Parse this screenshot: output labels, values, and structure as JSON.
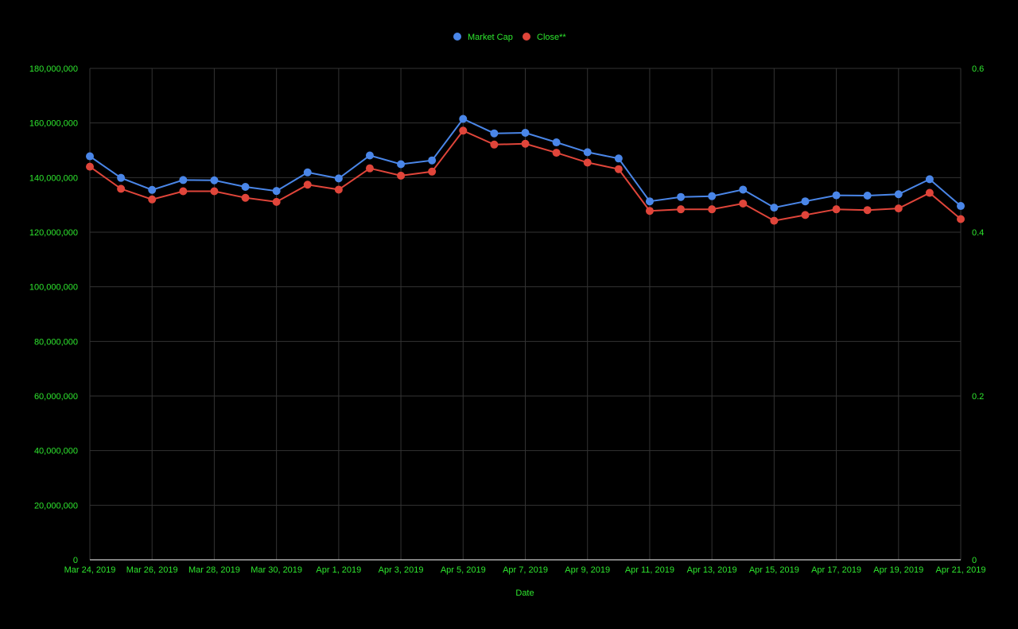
{
  "chart_data": {
    "type": "line",
    "xlabel": "Date",
    "x": [
      "Mar 24, 2019",
      "Mar 25, 2019",
      "Mar 26, 2019",
      "Mar 27, 2019",
      "Mar 28, 2019",
      "Mar 29, 2019",
      "Mar 30, 2019",
      "Mar 31, 2019",
      "Apr 1, 2019",
      "Apr 2, 2019",
      "Apr 3, 2019",
      "Apr 4, 2019",
      "Apr 5, 2019",
      "Apr 6, 2019",
      "Apr 7, 2019",
      "Apr 8, 2019",
      "Apr 9, 2019",
      "Apr 10, 2019",
      "Apr 11, 2019",
      "Apr 12, 2019",
      "Apr 13, 2019",
      "Apr 14, 2019",
      "Apr 15, 2019",
      "Apr 16, 2019",
      "Apr 17, 2019",
      "Apr 18, 2019",
      "Apr 19, 2019",
      "Apr 20, 2019",
      "Apr 21, 2019"
    ],
    "x_tick_labels": [
      "Mar 24, 2019",
      "Mar 26, 2019",
      "Mar 28, 2019",
      "Mar 30, 2019",
      "Apr 1, 2019",
      "Apr 3, 2019",
      "Apr 5, 2019",
      "Apr 7, 2019",
      "Apr 9, 2019",
      "Apr 11, 2019",
      "Apr 13, 2019",
      "Apr 15, 2019",
      "Apr 17, 2019",
      "Apr 19, 2019",
      "Apr 21, 2019"
    ],
    "y_left": {
      "range": [
        0,
        180000000
      ],
      "tick_labels": [
        "0",
        "20,000,000",
        "40,000,000",
        "60,000,000",
        "80,000,000",
        "100,000,000",
        "120,000,000",
        "140,000,000",
        "160,000,000",
        "180,000,000"
      ]
    },
    "y_right": {
      "range": [
        0,
        0.6
      ],
      "tick_labels": [
        "0",
        "0.2",
        "0.4",
        "0.6"
      ]
    },
    "series": [
      {
        "name": "Market Cap",
        "axis": "left",
        "color": "#4a86e8",
        "values": [
          147800000,
          139900000,
          135500000,
          139100000,
          139000000,
          136600000,
          135100000,
          141900000,
          139700000,
          148100000,
          144900000,
          146300000,
          161500000,
          156200000,
          156400000,
          152900000,
          149300000,
          147000000,
          131300000,
          132900000,
          133200000,
          135600000,
          129000000,
          131300000,
          133500000,
          133400000,
          133900000,
          139400000,
          129600000
        ]
      },
      {
        "name": "Close**",
        "axis": "right",
        "color": "#e0453a",
        "values": [
          0.48,
          0.453,
          0.44,
          0.45,
          0.45,
          0.442,
          0.437,
          0.458,
          0.452,
          0.478,
          0.469,
          0.474,
          0.524,
          0.507,
          0.508,
          0.497,
          0.485,
          0.477,
          0.426,
          0.428,
          0.428,
          0.435,
          0.414,
          0.421,
          0.428,
          0.427,
          0.429,
          0.448,
          0.416
        ]
      }
    ],
    "grid": true,
    "legend_position": "top-center"
  }
}
